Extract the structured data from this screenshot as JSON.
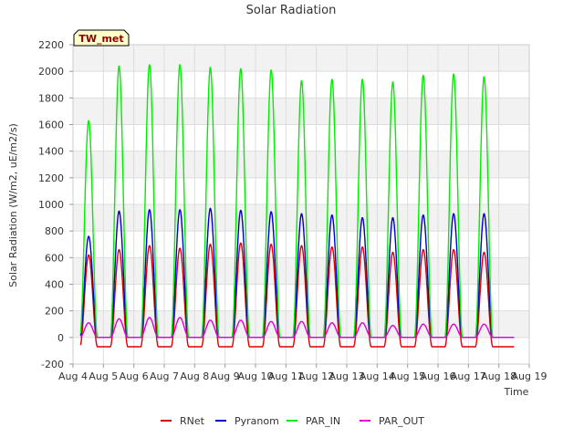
{
  "chart_data": {
    "type": "line",
    "title": "Solar Radiation",
    "xlabel": "Time",
    "ylabel": "Solar Radiation (W/m2, uE/m2/s)",
    "station_label": "TW_met",
    "xlim": [
      4,
      19
    ],
    "ylim": [
      -200,
      2200
    ],
    "x_ticks": [
      {
        "value": 4,
        "label": "Aug 4"
      },
      {
        "value": 5,
        "label": "Aug 5"
      },
      {
        "value": 6,
        "label": "Aug 6"
      },
      {
        "value": 7,
        "label": "Aug 7"
      },
      {
        "value": 8,
        "label": "Aug 8"
      },
      {
        "value": 9,
        "label": "Aug 9"
      },
      {
        "value": 10,
        "label": "Aug 10"
      },
      {
        "value": 11,
        "label": "Aug 11"
      },
      {
        "value": 12,
        "label": "Aug 12"
      },
      {
        "value": 13,
        "label": "Aug 13"
      },
      {
        "value": 14,
        "label": "Aug 14"
      },
      {
        "value": 15,
        "label": "Aug 15"
      },
      {
        "value": 16,
        "label": "Aug 16"
      },
      {
        "value": 17,
        "label": "Aug 17"
      },
      {
        "value": 18,
        "label": "Aug 18"
      },
      {
        "value": 19,
        "label": "Aug 19"
      }
    ],
    "y_ticks": [
      -200,
      0,
      200,
      400,
      600,
      800,
      1000,
      1200,
      1400,
      1600,
      1800,
      2000,
      2200
    ],
    "grid": true,
    "legend_position": "bottom",
    "daily_peak_dates": [
      "Aug 4",
      "Aug 5",
      "Aug 6",
      "Aug 7",
      "Aug 8",
      "Aug 9",
      "Aug 10",
      "Aug 11",
      "Aug 12",
      "Aug 13",
      "Aug 14",
      "Aug 15",
      "Aug 16",
      "Aug 17"
    ],
    "series": [
      {
        "name": "RNet",
        "color": "#dd0000",
        "daily_peak": [
          620,
          660,
          690,
          670,
          700,
          710,
          700,
          690,
          680,
          680,
          640,
          660,
          660,
          640
        ],
        "night_value": -70
      },
      {
        "name": "Pyranom",
        "color": "#0000cc",
        "daily_peak": [
          760,
          950,
          960,
          960,
          970,
          955,
          945,
          930,
          920,
          900,
          900,
          920,
          930,
          930
        ],
        "night_value": 0
      },
      {
        "name": "PAR_IN",
        "color": "#00ee00",
        "daily_peak": [
          1630,
          2040,
          2050,
          2050,
          2030,
          2020,
          2010,
          1930,
          1940,
          1940,
          1920,
          1970,
          1980,
          1960
        ],
        "night_value": 0
      },
      {
        "name": "PAR_OUT",
        "color": "#dd00dd",
        "daily_peak": [
          110,
          140,
          150,
          150,
          130,
          130,
          120,
          120,
          110,
          110,
          90,
          100,
          100,
          100
        ],
        "night_value": 0
      }
    ]
  }
}
